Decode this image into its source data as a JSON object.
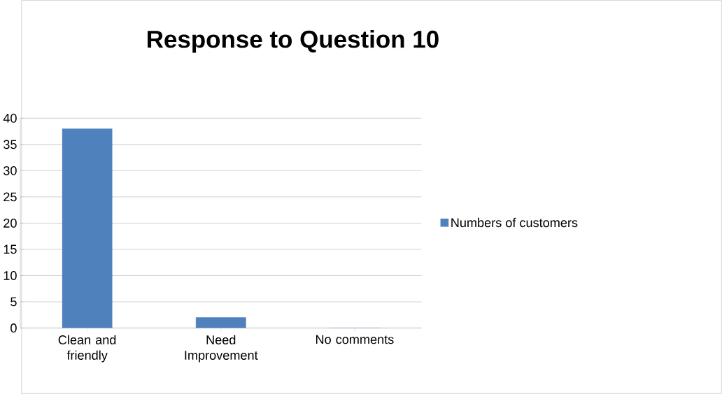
{
  "chart_data": {
    "type": "bar",
    "title": "Response to Question 10",
    "categories": [
      "Clean and friendly",
      "Need Improvement",
      "No comments"
    ],
    "series": [
      {
        "name": "Numbers of customers",
        "color": "#4f81bd",
        "values": [
          38,
          2,
          0
        ]
      }
    ],
    "ylim": [
      0,
      40
    ],
    "yticks": [
      0,
      5,
      10,
      15,
      20,
      25,
      30,
      35,
      40
    ],
    "grid": "y",
    "legend": "right"
  }
}
